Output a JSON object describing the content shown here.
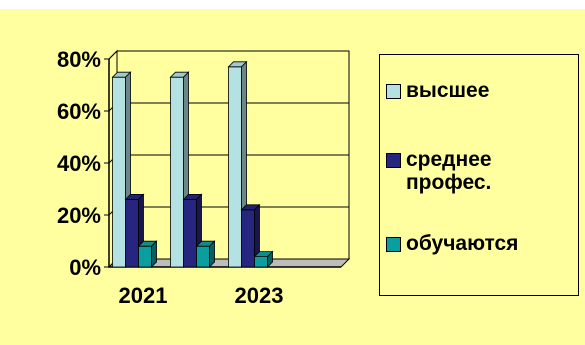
{
  "colors": {
    "background": "#ffffa0",
    "grid": "#000000"
  },
  "chart_data": {
    "type": "bar",
    "categories": [
      "2021",
      "",
      "2023",
      ""
    ],
    "x_tick_labels": [
      "2021",
      "2023"
    ],
    "series": [
      {
        "name": "высшее",
        "values": [
          73,
          73,
          77,
          0
        ],
        "color": "#b4e1e1"
      },
      {
        "name": "среднее\nпрофес.",
        "values": [
          26,
          26,
          22,
          0
        ],
        "color": "#262680"
      },
      {
        "name": "обучаются",
        "values": [
          8,
          8,
          4,
          0
        ],
        "color": "#0b9e9e"
      }
    ],
    "y_tick_labels": [
      "0%",
      "20%",
      "40%",
      "60%",
      "80%"
    ],
    "ylim": [
      0,
      80
    ],
    "grid": true,
    "three_d": true,
    "legend_position": "right"
  }
}
